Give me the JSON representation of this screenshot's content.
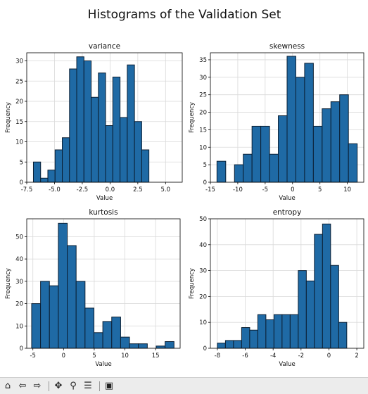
{
  "figure_title": "Histograms of the Validation Set",
  "chart_data": [
    {
      "type": "bar",
      "title": "variance",
      "xlabel": "Value",
      "ylabel": "Frequency",
      "xlim": [
        -7.5,
        6.5
      ],
      "ylim": [
        0,
        32
      ],
      "xticks": [
        -7.5,
        -5.0,
        -2.5,
        0.0,
        2.5,
        5.0
      ],
      "xtick_labels": [
        "-7.5",
        "-5.0",
        "-2.5",
        "0.0",
        "2.5",
        "5.0"
      ],
      "yticks": [
        0,
        5,
        10,
        15,
        20,
        25,
        30
      ],
      "ytick_labels": [
        "0",
        "5",
        "10",
        "15",
        "20",
        "25",
        "30"
      ],
      "bin_start": -6.9,
      "bin_width": 0.65,
      "values": [
        5,
        1,
        3,
        8,
        11,
        28,
        31,
        30,
        21,
        27,
        14,
        26,
        16,
        29,
        15,
        8
      ],
      "grid": true
    },
    {
      "type": "bar",
      "title": "skewness",
      "xlabel": "Value",
      "ylabel": "Frequency",
      "xlim": [
        -15,
        13
      ],
      "ylim": [
        0,
        37
      ],
      "xticks": [
        -15,
        -10,
        -5,
        0,
        5,
        10
      ],
      "xtick_labels": [
        "-15",
        "-10",
        "-5",
        "0",
        "5",
        "10"
      ],
      "yticks": [
        0,
        5,
        10,
        15,
        20,
        25,
        30,
        35
      ],
      "ytick_labels": [
        "0",
        "5",
        "10",
        "15",
        "20",
        "25",
        "30",
        "35"
      ],
      "bin_start": -13.8,
      "bin_width": 1.6,
      "values": [
        6,
        0,
        5,
        8,
        16,
        16,
        8,
        19,
        36,
        30,
        34,
        16,
        21,
        23,
        25,
        11
      ],
      "grid": true
    },
    {
      "type": "bar",
      "title": "kurtosis",
      "xlabel": "Value",
      "ylabel": "Frequency",
      "xlim": [
        -6,
        19
      ],
      "ylim": [
        0,
        58
      ],
      "xticks": [
        -5,
        0,
        5,
        10,
        15
      ],
      "xtick_labels": [
        "-5",
        "0",
        "5",
        "10",
        "15"
      ],
      "yticks": [
        0,
        10,
        20,
        30,
        40,
        50
      ],
      "ytick_labels": [
        "0",
        "10",
        "20",
        "30",
        "40",
        "50"
      ],
      "bin_start": -5.2,
      "bin_width": 1.45,
      "values": [
        20,
        30,
        28,
        56,
        46,
        30,
        18,
        7,
        12,
        14,
        5,
        2,
        2,
        0,
        1,
        3
      ],
      "grid": true
    },
    {
      "type": "bar",
      "title": "entropy",
      "xlabel": "Value",
      "ylabel": "Frequency",
      "xlim": [
        -8.5,
        2.5
      ],
      "ylim": [
        0,
        50
      ],
      "xticks": [
        -8,
        -6,
        -4,
        -2,
        0,
        2
      ],
      "xtick_labels": [
        "-8",
        "-6",
        "-4",
        "-2",
        "0",
        "2"
      ],
      "yticks": [
        0,
        10,
        20,
        30,
        40,
        50
      ],
      "ytick_labels": [
        "0",
        "10",
        "20",
        "30",
        "40",
        "50"
      ],
      "bin_start": -8.0,
      "bin_width": 0.58,
      "values": [
        2,
        3,
        3,
        8,
        7,
        13,
        11,
        13,
        13,
        13,
        30,
        26,
        44,
        48,
        32,
        10
      ],
      "grid": true
    }
  ],
  "colors": {
    "bar_fill": "#1f6aa5",
    "bar_edge": "#0b1f33",
    "grid": "#d9d9d9",
    "axis": "#000000",
    "text": "#111111"
  },
  "toolbar": {
    "home": "⌂",
    "back": "⇦",
    "forward": "⇨",
    "pan": "✥",
    "zoom": "⚲",
    "configure": "☰",
    "save": "▣"
  }
}
